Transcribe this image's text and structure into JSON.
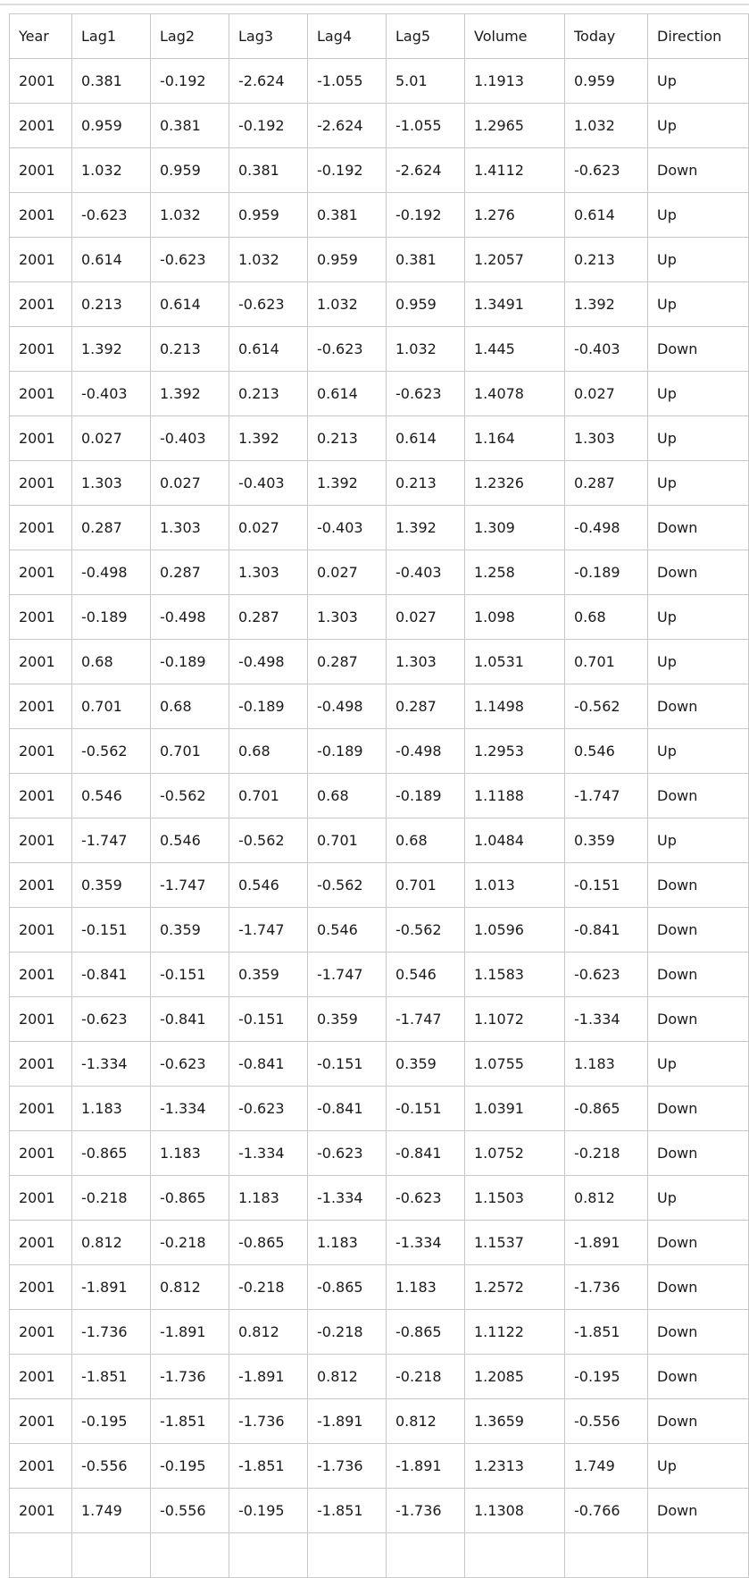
{
  "table": {
    "columns": [
      "Year",
      "Lag1",
      "Lag2",
      "Lag3",
      "Lag4",
      "Lag5",
      "Volume",
      "Today",
      "Direction"
    ],
    "rows": [
      [
        "2001",
        "0.381",
        "-0.192",
        "-2.624",
        "-1.055",
        "5.01",
        "1.1913",
        "0.959",
        "Up"
      ],
      [
        "2001",
        "0.959",
        "0.381",
        "-0.192",
        "-2.624",
        "-1.055",
        "1.2965",
        "1.032",
        "Up"
      ],
      [
        "2001",
        "1.032",
        "0.959",
        "0.381",
        "-0.192",
        "-2.624",
        "1.4112",
        "-0.623",
        "Down"
      ],
      [
        "2001",
        "-0.623",
        "1.032",
        "0.959",
        "0.381",
        "-0.192",
        "1.276",
        "0.614",
        "Up"
      ],
      [
        "2001",
        "0.614",
        "-0.623",
        "1.032",
        "0.959",
        "0.381",
        "1.2057",
        "0.213",
        "Up"
      ],
      [
        "2001",
        "0.213",
        "0.614",
        "-0.623",
        "1.032",
        "0.959",
        "1.3491",
        "1.392",
        "Up"
      ],
      [
        "2001",
        "1.392",
        "0.213",
        "0.614",
        "-0.623",
        "1.032",
        "1.445",
        "-0.403",
        "Down"
      ],
      [
        "2001",
        "-0.403",
        "1.392",
        "0.213",
        "0.614",
        "-0.623",
        "1.4078",
        "0.027",
        "Up"
      ],
      [
        "2001",
        "0.027",
        "-0.403",
        "1.392",
        "0.213",
        "0.614",
        "1.164",
        "1.303",
        "Up"
      ],
      [
        "2001",
        "1.303",
        "0.027",
        "-0.403",
        "1.392",
        "0.213",
        "1.2326",
        "0.287",
        "Up"
      ],
      [
        "2001",
        "0.287",
        "1.303",
        "0.027",
        "-0.403",
        "1.392",
        "1.309",
        "-0.498",
        "Down"
      ],
      [
        "2001",
        "-0.498",
        "0.287",
        "1.303",
        "0.027",
        "-0.403",
        "1.258",
        "-0.189",
        "Down"
      ],
      [
        "2001",
        "-0.189",
        "-0.498",
        "0.287",
        "1.303",
        "0.027",
        "1.098",
        "0.68",
        "Up"
      ],
      [
        "2001",
        "0.68",
        "-0.189",
        "-0.498",
        "0.287",
        "1.303",
        "1.0531",
        "0.701",
        "Up"
      ],
      [
        "2001",
        "0.701",
        "0.68",
        "-0.189",
        "-0.498",
        "0.287",
        "1.1498",
        "-0.562",
        "Down"
      ],
      [
        "2001",
        "-0.562",
        "0.701",
        "0.68",
        "-0.189",
        "-0.498",
        "1.2953",
        "0.546",
        "Up"
      ],
      [
        "2001",
        "0.546",
        "-0.562",
        "0.701",
        "0.68",
        "-0.189",
        "1.1188",
        "-1.747",
        "Down"
      ],
      [
        "2001",
        "-1.747",
        "0.546",
        "-0.562",
        "0.701",
        "0.68",
        "1.0484",
        "0.359",
        "Up"
      ],
      [
        "2001",
        "0.359",
        "-1.747",
        "0.546",
        "-0.562",
        "0.701",
        "1.013",
        "-0.151",
        "Down"
      ],
      [
        "2001",
        "-0.151",
        "0.359",
        "-1.747",
        "0.546",
        "-0.562",
        "1.0596",
        "-0.841",
        "Down"
      ],
      [
        "2001",
        "-0.841",
        "-0.151",
        "0.359",
        "-1.747",
        "0.546",
        "1.1583",
        "-0.623",
        "Down"
      ],
      [
        "2001",
        "-0.623",
        "-0.841",
        "-0.151",
        "0.359",
        "-1.747",
        "1.1072",
        "-1.334",
        "Down"
      ],
      [
        "2001",
        "-1.334",
        "-0.623",
        "-0.841",
        "-0.151",
        "0.359",
        "1.0755",
        "1.183",
        "Up"
      ],
      [
        "2001",
        "1.183",
        "-1.334",
        "-0.623",
        "-0.841",
        "-0.151",
        "1.0391",
        "-0.865",
        "Down"
      ],
      [
        "2001",
        "-0.865",
        "1.183",
        "-1.334",
        "-0.623",
        "-0.841",
        "1.0752",
        "-0.218",
        "Down"
      ],
      [
        "2001",
        "-0.218",
        "-0.865",
        "1.183",
        "-1.334",
        "-0.623",
        "1.1503",
        "0.812",
        "Up"
      ],
      [
        "2001",
        "0.812",
        "-0.218",
        "-0.865",
        "1.183",
        "-1.334",
        "1.1537",
        "-1.891",
        "Down"
      ],
      [
        "2001",
        "-1.891",
        "0.812",
        "-0.218",
        "-0.865",
        "1.183",
        "1.2572",
        "-1.736",
        "Down"
      ],
      [
        "2001",
        "-1.736",
        "-1.891",
        "0.812",
        "-0.218",
        "-0.865",
        "1.1122",
        "-1.851",
        "Down"
      ],
      [
        "2001",
        "-1.851",
        "-1.736",
        "-1.891",
        "0.812",
        "-0.218",
        "1.2085",
        "-0.195",
        "Down"
      ],
      [
        "2001",
        "-0.195",
        "-1.851",
        "-1.736",
        "-1.891",
        "0.812",
        "1.3659",
        "-0.556",
        "Down"
      ],
      [
        "2001",
        "-0.556",
        "-0.195",
        "-1.851",
        "-1.736",
        "-1.891",
        "1.2313",
        "1.749",
        "Up"
      ],
      [
        "2001",
        "1.749",
        "-0.556",
        "-0.195",
        "-1.851",
        "-1.736",
        "1.1308",
        "-0.766",
        "Down"
      ]
    ],
    "partial_next_row_visible": true
  },
  "colors": {
    "background": "#ffffff",
    "cell_border": "#c8c8c8",
    "top_rule": "#dddddd",
    "text": "#1a1a1a"
  }
}
